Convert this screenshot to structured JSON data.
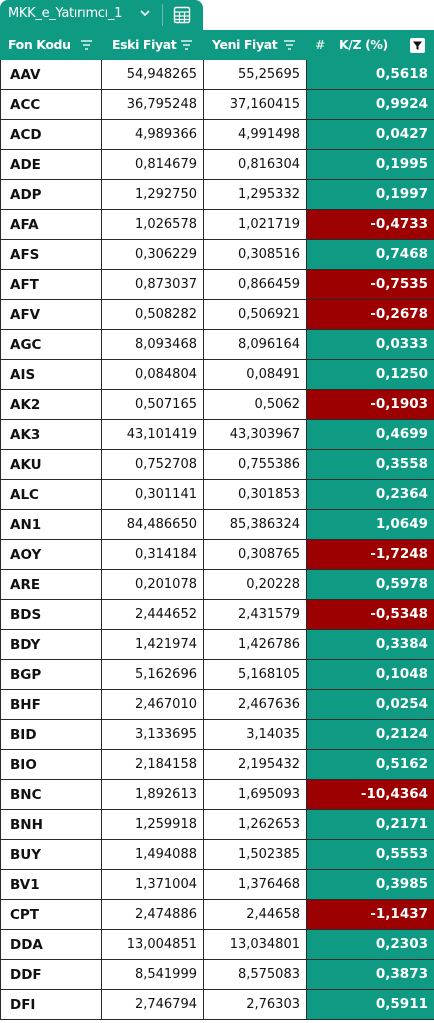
{
  "tab": {
    "label": "MKK_e_Yatırımcı_1"
  },
  "columns": {
    "code": "Fon Kodu",
    "old": "Eski Fiyat",
    "new": "Yeni Fiyat",
    "hash": "#",
    "kz": "K/Z (%)"
  },
  "colors": {
    "header": "#0f9a84",
    "positive": "#0f9a84",
    "negative": "#9c0000"
  },
  "rows": [
    {
      "code": "AAV",
      "old": "54,948265",
      "new": "55,25695",
      "kz": "0,5618",
      "sign": "pos"
    },
    {
      "code": "ACC",
      "old": "36,795248",
      "new": "37,160415",
      "kz": "0,9924",
      "sign": "pos"
    },
    {
      "code": "ACD",
      "old": "4,989366",
      "new": "4,991498",
      "kz": "0,0427",
      "sign": "pos"
    },
    {
      "code": "ADE",
      "old": "0,814679",
      "new": "0,816304",
      "kz": "0,1995",
      "sign": "pos"
    },
    {
      "code": "ADP",
      "old": "1,292750",
      "new": "1,295332",
      "kz": "0,1997",
      "sign": "pos"
    },
    {
      "code": "AFA",
      "old": "1,026578",
      "new": "1,021719",
      "kz": "-0,4733",
      "sign": "neg"
    },
    {
      "code": "AFS",
      "old": "0,306229",
      "new": "0,308516",
      "kz": "0,7468",
      "sign": "pos"
    },
    {
      "code": "AFT",
      "old": "0,873037",
      "new": "0,866459",
      "kz": "-0,7535",
      "sign": "neg"
    },
    {
      "code": "AFV",
      "old": "0,508282",
      "new": "0,506921",
      "kz": "-0,2678",
      "sign": "neg"
    },
    {
      "code": "AGC",
      "old": "8,093468",
      "new": "8,096164",
      "kz": "0,0333",
      "sign": "pos"
    },
    {
      "code": "AIS",
      "old": "0,084804",
      "new": "0,08491",
      "kz": "0,1250",
      "sign": "pos"
    },
    {
      "code": "AK2",
      "old": "0,507165",
      "new": "0,5062",
      "kz": "-0,1903",
      "sign": "neg"
    },
    {
      "code": "AK3",
      "old": "43,101419",
      "new": "43,303967",
      "kz": "0,4699",
      "sign": "pos"
    },
    {
      "code": "AKU",
      "old": "0,752708",
      "new": "0,755386",
      "kz": "0,3558",
      "sign": "pos"
    },
    {
      "code": "ALC",
      "old": "0,301141",
      "new": "0,301853",
      "kz": "0,2364",
      "sign": "pos"
    },
    {
      "code": "AN1",
      "old": "84,486650",
      "new": "85,386324",
      "kz": "1,0649",
      "sign": "pos"
    },
    {
      "code": "AOY",
      "old": "0,314184",
      "new": "0,308765",
      "kz": "-1,7248",
      "sign": "neg"
    },
    {
      "code": "ARE",
      "old": "0,201078",
      "new": "0,20228",
      "kz": "0,5978",
      "sign": "pos"
    },
    {
      "code": "BDS",
      "old": "2,444652",
      "new": "2,431579",
      "kz": "-0,5348",
      "sign": "neg"
    },
    {
      "code": "BDY",
      "old": "1,421974",
      "new": "1,426786",
      "kz": "0,3384",
      "sign": "pos"
    },
    {
      "code": "BGP",
      "old": "5,162696",
      "new": "5,168105",
      "kz": "0,1048",
      "sign": "pos"
    },
    {
      "code": "BHF",
      "old": "2,467010",
      "new": "2,467636",
      "kz": "0,0254",
      "sign": "pos"
    },
    {
      "code": "BID",
      "old": "3,133695",
      "new": "3,14035",
      "kz": "0,2124",
      "sign": "pos"
    },
    {
      "code": "BIO",
      "old": "2,184158",
      "new": "2,195432",
      "kz": "0,5162",
      "sign": "pos"
    },
    {
      "code": "BNC",
      "old": "1,892613",
      "new": "1,695093",
      "kz": "-10,4364",
      "sign": "neg"
    },
    {
      "code": "BNH",
      "old": "1,259918",
      "new": "1,262653",
      "kz": "0,2171",
      "sign": "pos"
    },
    {
      "code": "BUY",
      "old": "1,494088",
      "new": "1,502385",
      "kz": "0,5553",
      "sign": "pos"
    },
    {
      "code": "BV1",
      "old": "1,371004",
      "new": "1,376468",
      "kz": "0,3985",
      "sign": "pos"
    },
    {
      "code": "CPT",
      "old": "2,474886",
      "new": "2,44658",
      "kz": "-1,1437",
      "sign": "neg"
    },
    {
      "code": "DDA",
      "old": "13,004851",
      "new": "13,034801",
      "kz": "0,2303",
      "sign": "pos"
    },
    {
      "code": "DDF",
      "old": "8,541999",
      "new": "8,575083",
      "kz": "0,3873",
      "sign": "pos"
    },
    {
      "code": "DFI",
      "old": "2,746794",
      "new": "2,76303",
      "kz": "0,5911",
      "sign": "pos"
    }
  ]
}
